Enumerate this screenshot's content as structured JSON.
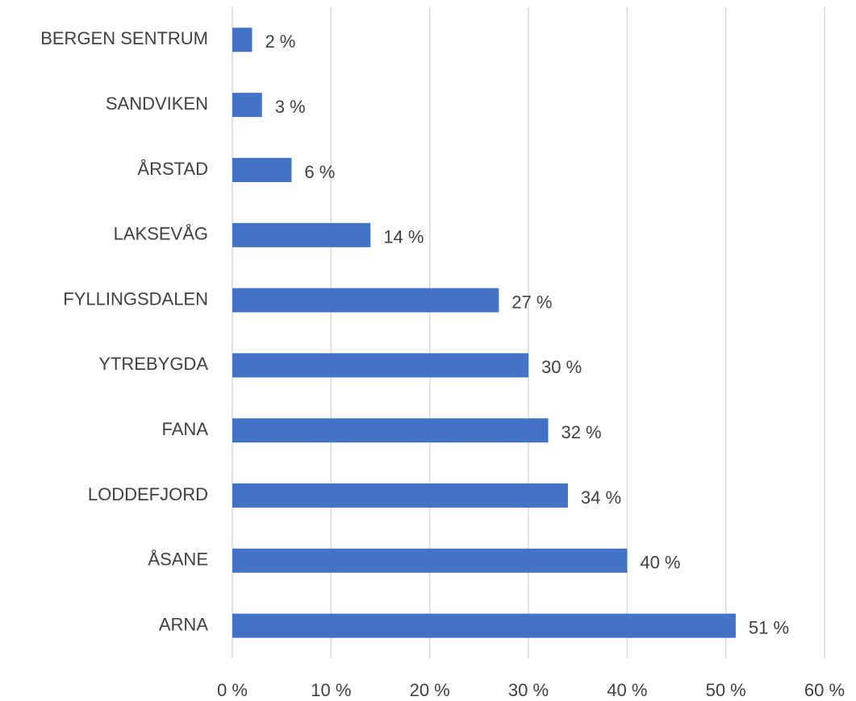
{
  "chart_data": {
    "type": "hbar",
    "categories": [
      "BERGEN SENTRUM",
      "SANDVIKEN",
      "ÅRSTAD",
      "LAKSEVÅG",
      "FYLLINGSDALEN",
      "YTREBYGDA",
      "FANA",
      "LODDEFJORD",
      "ÅSANE",
      "ARNA"
    ],
    "values": [
      2,
      3,
      6,
      14,
      27,
      30,
      32,
      34,
      40,
      51
    ],
    "value_labels": [
      "2 %",
      "3 %",
      "6 %",
      "14 %",
      "27 %",
      "30 %",
      "32 %",
      "34 %",
      "40 %",
      "51 %"
    ],
    "color": "#4472c4",
    "xlim": [
      0,
      60
    ],
    "xticks": [
      {
        "value": 0,
        "label": "0 %"
      },
      {
        "value": 10,
        "label": "10 %"
      },
      {
        "value": 20,
        "label": "20 %"
      },
      {
        "value": 30,
        "label": "30 %"
      },
      {
        "value": 40,
        "label": "40 %"
      },
      {
        "value": 50,
        "label": "50 %"
      },
      {
        "value": 60,
        "label": "60 %"
      }
    ],
    "grid": true
  }
}
